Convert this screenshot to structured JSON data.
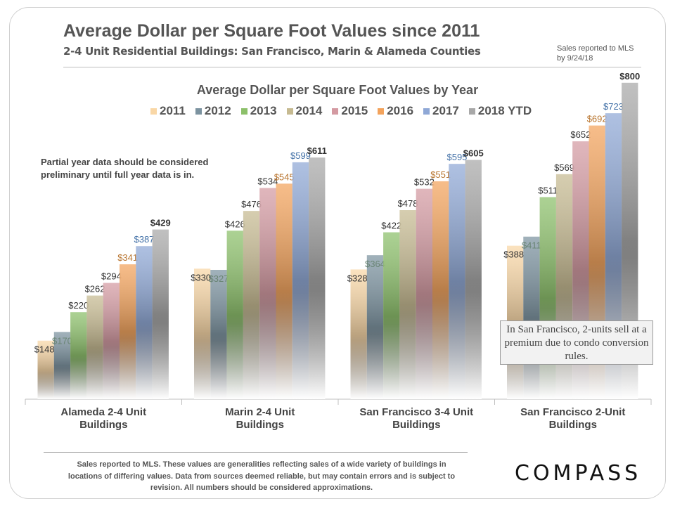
{
  "header": {
    "title": "Average Dollar per Square Foot Values since 2011",
    "subtitle": "2-4 Unit Residential Buildings:  San Francisco, Marin & Alameda Counties",
    "sales_note": "Sales reported to MLS by 9/24/18"
  },
  "notes": {
    "partial_year": "Partial year data should be considered preliminary until full year data is in.",
    "callout": "In San Francisco, 2-units sell at a  premium due to condo conversion rules.",
    "footnote": "Sales reported to MLS. These values are generalities reflecting sales of a wide variety of buildings  in locations of differing values. Data from sources deemed reliable, but may contain errors and is subject to revision. All numbers  should be considered approximations."
  },
  "brand": {
    "logo": "COMPASS"
  },
  "chart_data": {
    "type": "bar",
    "title": "Average Dollar per Square Foot Values by Year",
    "categories": [
      "Alameda 2-4 Unit Buildings",
      "Marin 2-4 Unit Buildings",
      "San Francisco 3-4 Unit Buildings",
      "San Francisco 2-Unit Buildings"
    ],
    "series": [
      {
        "name": "2011",
        "color": "#f9d7a6",
        "label_color": "#333333",
        "values": [
          148,
          330,
          328,
          388
        ]
      },
      {
        "name": "2012",
        "color": "#7c93a0",
        "label_color": "#6a8575",
        "values": [
          170,
          327,
          364,
          411
        ]
      },
      {
        "name": "2013",
        "color": "#8cc06a",
        "label_color": "#333333",
        "values": [
          220,
          426,
          422,
          511
        ]
      },
      {
        "name": "2014",
        "color": "#c6ba91",
        "label_color": "#333333",
        "values": [
          262,
          476,
          478,
          569
        ]
      },
      {
        "name": "2015",
        "color": "#d49aa2",
        "label_color": "#333333",
        "values": [
          294,
          534,
          532,
          652
        ]
      },
      {
        "name": "2016",
        "color": "#f3a35c",
        "label_color": "#b8742e",
        "values": [
          341,
          545,
          551,
          692
        ]
      },
      {
        "name": "2017",
        "color": "#8fa8d6",
        "label_color": "#4472a8",
        "values": [
          387,
          599,
          595,
          723
        ]
      },
      {
        "name": "2018 YTD",
        "color": "#a8a8a8",
        "label_color": "#333333",
        "values": [
          429,
          611,
          605,
          800
        ]
      }
    ],
    "value_prefix": "$",
    "ylim": [
      0,
      885
    ],
    "grid": false,
    "legend_position": "top"
  }
}
